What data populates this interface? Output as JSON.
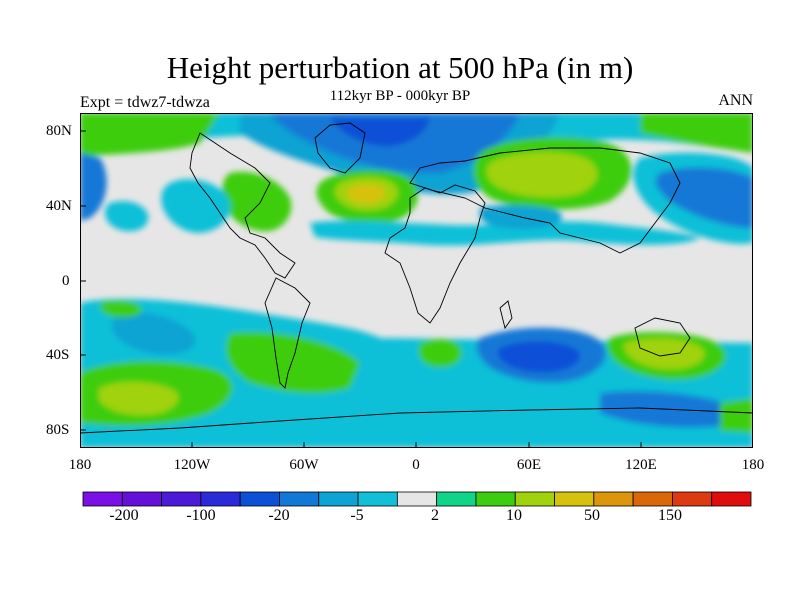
{
  "title": "Height perturbation at 500 hPa (in m)",
  "experiment_label": "Expt = tdwz7-tdwza",
  "period_label": "112kyr BP - 000kyr BP",
  "season_label": "ANN",
  "lat_labels": [
    "80N",
    "40N",
    "0",
    "40S",
    "80S"
  ],
  "lon_labels": [
    "180",
    "120W",
    "60W",
    "0",
    "60E",
    "120E",
    "180"
  ],
  "colorbar": {
    "colors": [
      "#7a0fe6",
      "#6510d8",
      "#4c19d6",
      "#2a2ad8",
      "#0b50d6",
      "#1278d6",
      "#0fa3d3",
      "#11c0d8",
      "#e6e6e6",
      "#10d488",
      "#3ccd11",
      "#a0d20d",
      "#d6c20c",
      "#db960b",
      "#da6708",
      "#dd3a12",
      "#e00d0d"
    ],
    "labels": [
      "-200",
      "-100",
      "-20",
      "-5",
      "2",
      "10",
      "50",
      "150"
    ]
  }
}
